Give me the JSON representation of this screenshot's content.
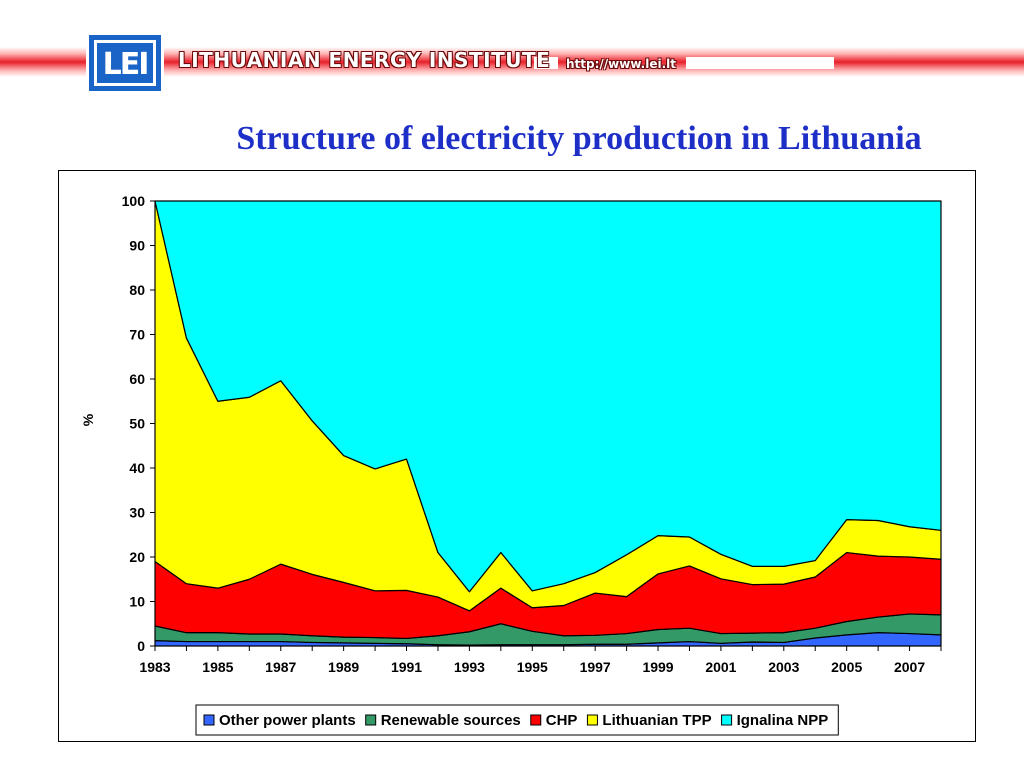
{
  "header": {
    "logo_text": "LEI",
    "org_name": "LITHUANIAN ENERGY INSTITUTE",
    "url": "http://www.lei.lt"
  },
  "slide_title": "Structure of electricity production in Lithuania",
  "chart_data": {
    "type": "area",
    "stacked": true,
    "percent_stacked": true,
    "title": "Structure of electricity production in Lithuania",
    "xlabel": "",
    "ylabel": "%",
    "ylim": [
      0,
      100
    ],
    "yticks": [
      0,
      10,
      20,
      30,
      40,
      50,
      60,
      70,
      80,
      90,
      100
    ],
    "x": [
      1983,
      1984,
      1985,
      1986,
      1987,
      1988,
      1989,
      1990,
      1991,
      1992,
      1993,
      1994,
      1995,
      1996,
      1997,
      1998,
      1999,
      2000,
      2001,
      2002,
      2003,
      2004,
      2005,
      2006,
      2007,
      2008
    ],
    "xtick_labels": [
      "1983",
      "1985",
      "1987",
      "1989",
      "1991",
      "1993",
      "1995",
      "1997",
      "1999",
      "2001",
      "2003",
      "2005",
      "2007"
    ],
    "grid": false,
    "legend_position": "bottom",
    "series": [
      {
        "name": "Other power plants",
        "color": "#3366ff",
        "values": [
          1.2,
          1.0,
          1.0,
          1.0,
          1.0,
          0.8,
          0.7,
          0.6,
          0.5,
          0.3,
          0.2,
          0.3,
          0.3,
          0.3,
          0.4,
          0.4,
          0.7,
          1.0,
          0.6,
          0.9,
          0.8,
          1.8,
          2.5,
          3.0,
          2.8,
          2.5
        ]
      },
      {
        "name": "Renewable sources",
        "color": "#339966",
        "values": [
          3.3,
          2.0,
          2.0,
          1.7,
          1.7,
          1.5,
          1.3,
          1.3,
          1.2,
          2.0,
          3.0,
          4.7,
          3.0,
          2.0,
          2.0,
          2.4,
          3.0,
          3.0,
          2.2,
          2.0,
          2.2,
          2.2,
          3.0,
          3.5,
          4.4,
          4.5
        ]
      },
      {
        "name": "CHP",
        "color": "#ff0000",
        "values": [
          14.5,
          11.0,
          10.0,
          12.3,
          15.7,
          13.8,
          12.3,
          10.5,
          10.8,
          8.7,
          4.7,
          8.0,
          5.3,
          6.8,
          9.5,
          8.3,
          12.5,
          14.0,
          12.3,
          10.9,
          10.9,
          11.5,
          15.5,
          13.7,
          12.8,
          12.5
        ]
      },
      {
        "name": "Lithuanian TPP",
        "color": "#ffff00",
        "values": [
          81.0,
          55.2,
          42.0,
          40.9,
          41.2,
          34.5,
          28.5,
          27.4,
          29.5,
          10.0,
          4.3,
          8.0,
          3.8,
          4.9,
          4.6,
          9.4,
          8.6,
          6.5,
          5.5,
          4.1,
          4.0,
          3.7,
          7.4,
          8.0,
          6.8,
          6.5
        ]
      },
      {
        "name": "Ignalina NPP",
        "color": "#00ffff",
        "values": [
          0.0,
          30.8,
          45.0,
          44.1,
          40.4,
          49.4,
          57.2,
          60.2,
          58.0,
          79.0,
          87.8,
          79.0,
          87.6,
          86.0,
          83.5,
          79.5,
          75.2,
          75.5,
          79.4,
          82.1,
          82.1,
          80.8,
          71.6,
          71.8,
          73.2,
          74.0
        ]
      }
    ]
  }
}
